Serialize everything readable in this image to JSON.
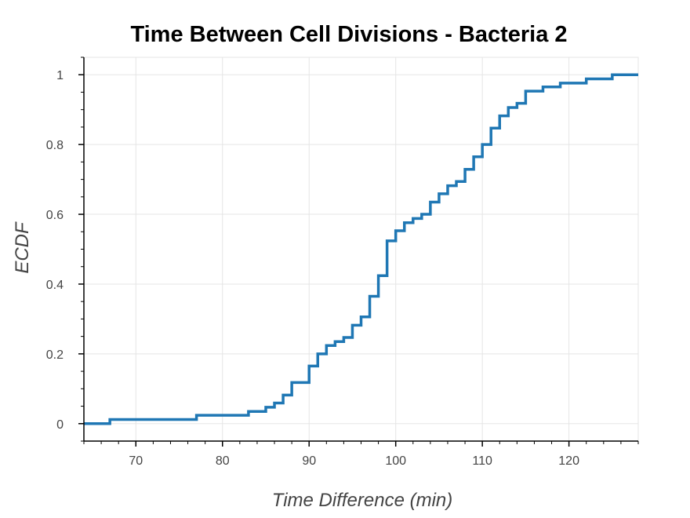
{
  "chart_data": {
    "type": "line",
    "step": true,
    "title": "Time Between Cell Divisions - Bacteria 2",
    "xlabel": "Time Difference (min)",
    "ylabel": "ECDF",
    "xlim": [
      64,
      128
    ],
    "ylim": [
      -0.05,
      1.05
    ],
    "x_ticks": [
      70,
      80,
      90,
      100,
      110,
      120
    ],
    "y_ticks": [
      0,
      0.2,
      0.4,
      0.6,
      0.8,
      1
    ],
    "x_tick_labels": [
      "70",
      "80",
      "90",
      "100",
      "110",
      "120"
    ],
    "y_tick_labels": [
      "0",
      "0.2",
      "0.4",
      "0.6",
      "0.8",
      "1"
    ],
    "grid": true,
    "series": [
      {
        "color": "#1f77b4",
        "points": [
          [
            64,
            0
          ],
          [
            67,
            0.012
          ],
          [
            77,
            0.024
          ],
          [
            83,
            0.035
          ],
          [
            85,
            0.047
          ],
          [
            86,
            0.059
          ],
          [
            87,
            0.082
          ],
          [
            88,
            0.118
          ],
          [
            90,
            0.165
          ],
          [
            91,
            0.2
          ],
          [
            92,
            0.224
          ],
          [
            93,
            0.235
          ],
          [
            94,
            0.247
          ],
          [
            95,
            0.282
          ],
          [
            96,
            0.306
          ],
          [
            97,
            0.365
          ],
          [
            98,
            0.424
          ],
          [
            99,
            0.524
          ],
          [
            100,
            0.553
          ],
          [
            101,
            0.576
          ],
          [
            102,
            0.588
          ],
          [
            103,
            0.6
          ],
          [
            104,
            0.635
          ],
          [
            105,
            0.659
          ],
          [
            106,
            0.682
          ],
          [
            107,
            0.694
          ],
          [
            108,
            0.729
          ],
          [
            109,
            0.765
          ],
          [
            110,
            0.8
          ],
          [
            111,
            0.847
          ],
          [
            112,
            0.882
          ],
          [
            113,
            0.906
          ],
          [
            114,
            0.918
          ],
          [
            115,
            0.953
          ],
          [
            117,
            0.965
          ],
          [
            119,
            0.976
          ],
          [
            122,
            0.988
          ],
          [
            125,
            1.0
          ],
          [
            128,
            1.0
          ]
        ]
      }
    ]
  }
}
